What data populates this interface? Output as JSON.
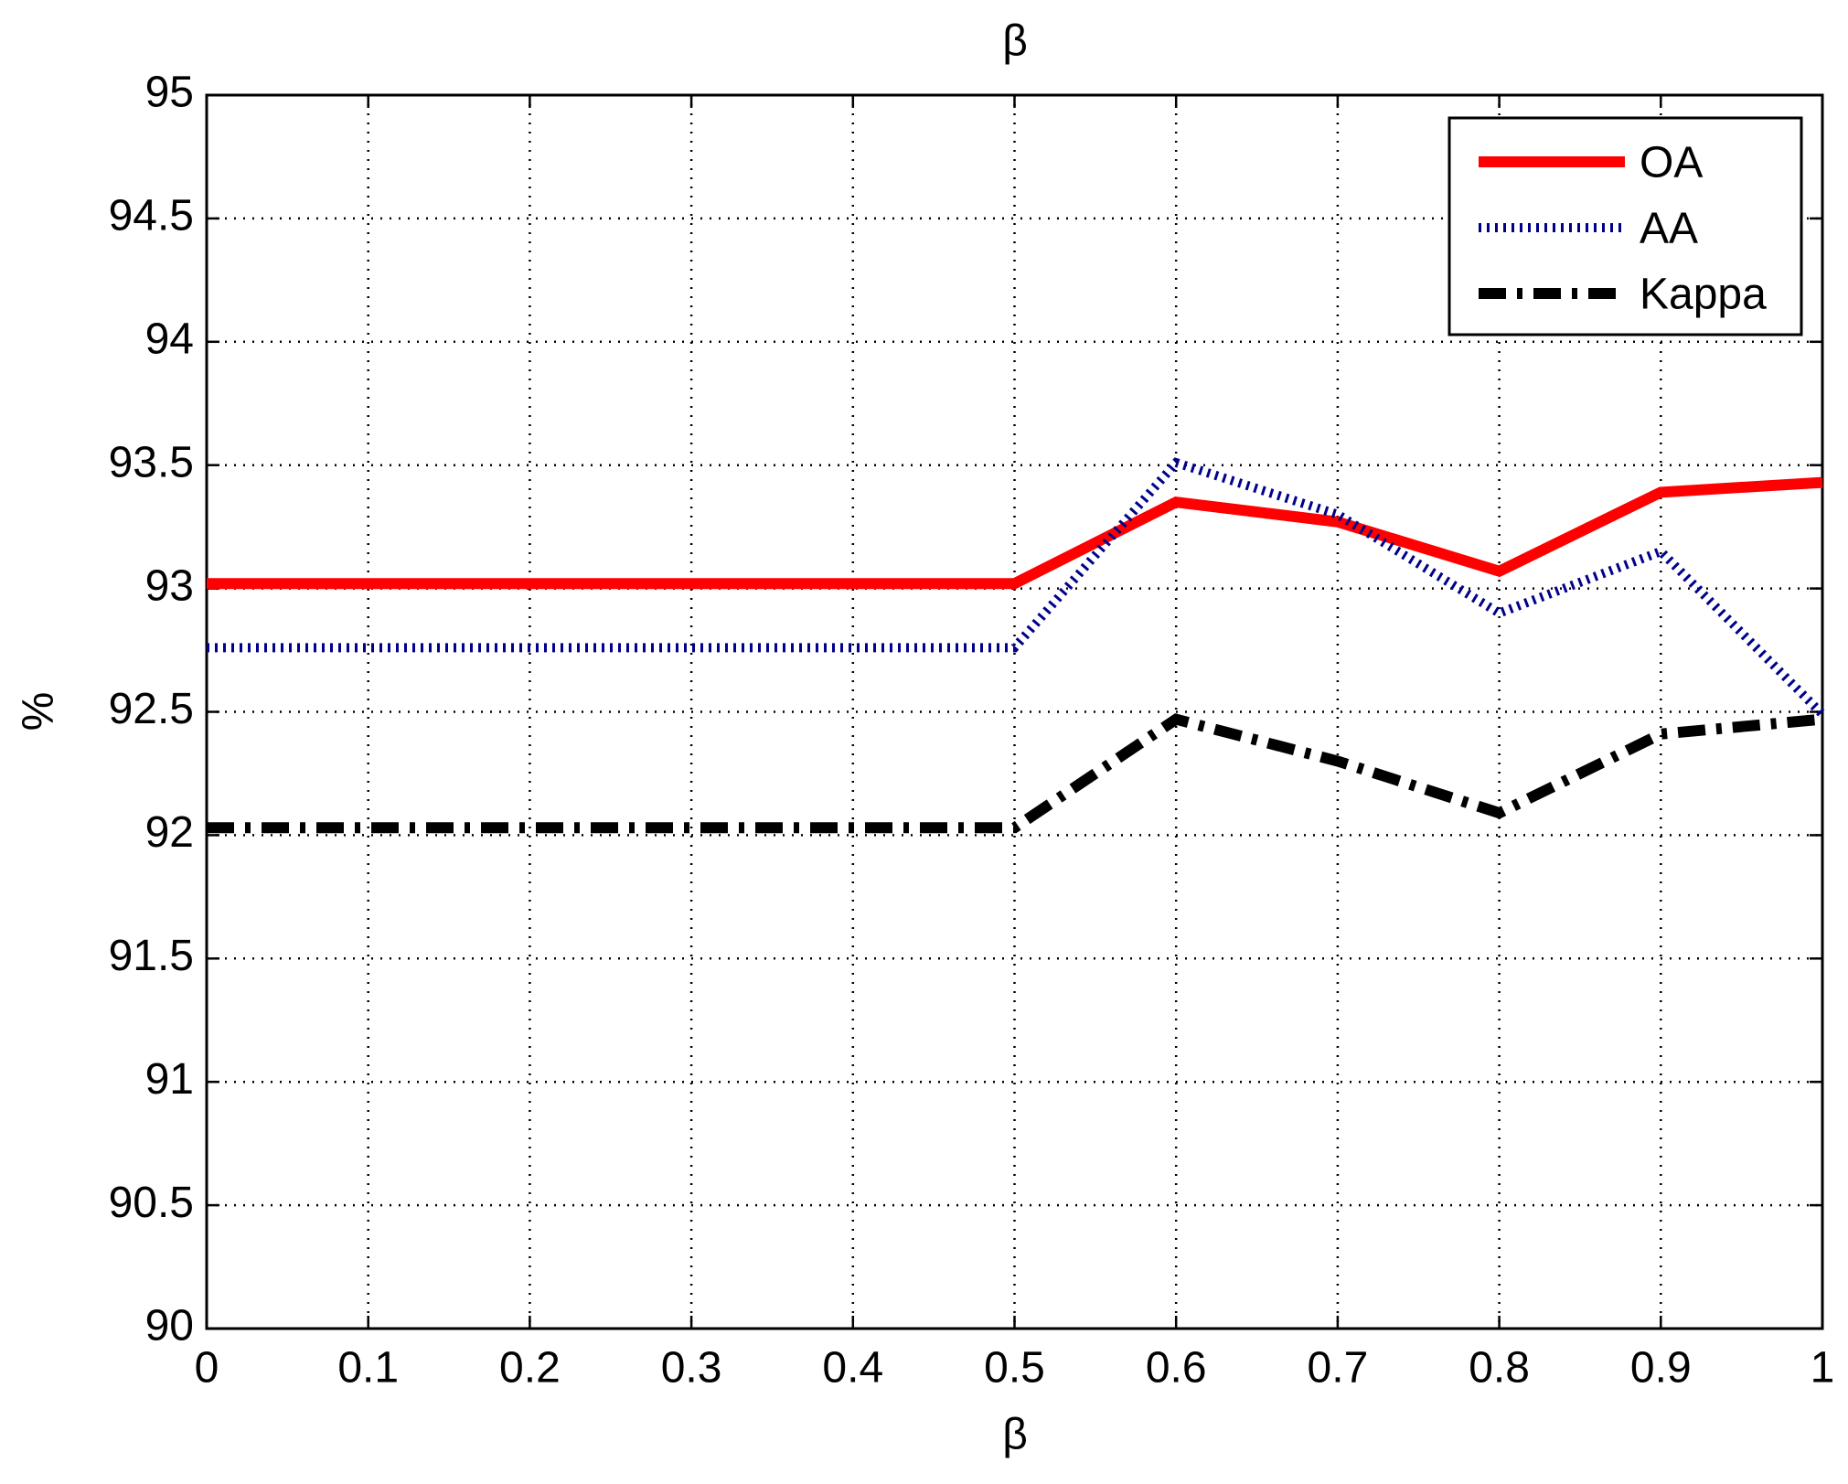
{
  "chart_data": {
    "type": "line",
    "title": "β",
    "xlabel": "β",
    "ylabel": "%",
    "x": [
      0,
      0.1,
      0.2,
      0.3,
      0.4,
      0.5,
      0.6,
      0.7,
      0.8,
      0.9,
      1
    ],
    "series": [
      {
        "name": "OA",
        "color": "#ff0000",
        "linestyle": "solid",
        "values": [
          93.02,
          93.02,
          93.02,
          93.02,
          93.02,
          93.02,
          93.35,
          93.27,
          93.07,
          93.39,
          93.43
        ]
      },
      {
        "name": "AA",
        "color": "#00008b",
        "linestyle": "dotted",
        "values": [
          92.76,
          92.76,
          92.76,
          92.76,
          92.76,
          92.76,
          93.51,
          93.3,
          92.9,
          93.15,
          92.49
        ]
      },
      {
        "name": "Kappa",
        "color": "#000000",
        "linestyle": "dashdot",
        "values": [
          92.03,
          92.03,
          92.03,
          92.03,
          92.03,
          92.03,
          92.47,
          92.3,
          92.09,
          92.41,
          92.47
        ]
      }
    ],
    "xlim": [
      0,
      1
    ],
    "xticks": [
      0,
      0.1,
      0.2,
      0.3,
      0.4,
      0.5,
      0.6,
      0.7,
      0.8,
      0.9,
      1
    ],
    "ylim": [
      90,
      95
    ],
    "yticks": [
      90,
      90.5,
      91,
      91.5,
      92,
      92.5,
      93,
      93.5,
      94,
      94.5,
      95
    ],
    "grid": true,
    "legend": "upper right"
  }
}
